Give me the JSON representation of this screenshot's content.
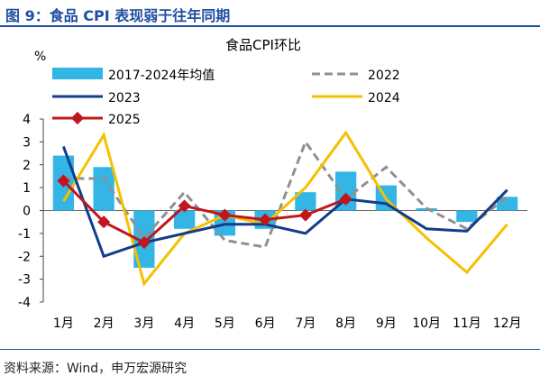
{
  "figure": {
    "title": "图 9：食品 CPI 表现弱于往年同期",
    "source": "资料来源：Wind，申万宏源研究"
  },
  "chart_data": {
    "type": "bar+line",
    "title": "食品CPI环比",
    "ylabel": "%",
    "xlabel": "",
    "ylim": [
      -4,
      4
    ],
    "yticks": [
      4,
      3,
      2,
      1,
      0,
      -1,
      -2,
      -3,
      -4
    ],
    "categories": [
      "1月",
      "2月",
      "3月",
      "4月",
      "5月",
      "6月",
      "7月",
      "8月",
      "9月",
      "10月",
      "11月",
      "12月"
    ],
    "grid": false,
    "legend_position": "top",
    "bars": {
      "name": "2017-2024年均值",
      "color": "#33b5e5",
      "values": [
        2.4,
        1.9,
        -2.5,
        -0.8,
        -1.1,
        -0.8,
        0.8,
        1.7,
        1.1,
        0.1,
        -0.5,
        0.6
      ]
    },
    "series": [
      {
        "name": "2022",
        "color": "#909090",
        "style": "dashed",
        "marker": false,
        "values": [
          1.4,
          1.4,
          -1.2,
          0.8,
          -1.3,
          -1.6,
          3.0,
          0.5,
          1.9,
          0.1,
          -0.8,
          0.6
        ]
      },
      {
        "name": "2023",
        "color": "#123c8c",
        "style": "solid",
        "marker": false,
        "values": [
          2.8,
          -2.0,
          -1.4,
          -1.0,
          -0.6,
          -0.6,
          -1.0,
          0.5,
          0.3,
          -0.8,
          -0.9,
          0.9
        ]
      },
      {
        "name": "2024",
        "color": "#f5c000",
        "style": "solid",
        "marker": false,
        "values": [
          0.4,
          3.3,
          -3.2,
          -1.0,
          -0.2,
          -0.6,
          1.0,
          3.4,
          0.5,
          -1.2,
          -2.7,
          -0.6
        ]
      },
      {
        "name": "2025",
        "color": "#c0161c",
        "style": "solid",
        "marker": true,
        "values": [
          1.3,
          -0.5,
          -1.4,
          0.2,
          -0.2,
          -0.4,
          -0.2,
          0.5,
          null,
          null,
          null,
          null
        ]
      }
    ]
  }
}
